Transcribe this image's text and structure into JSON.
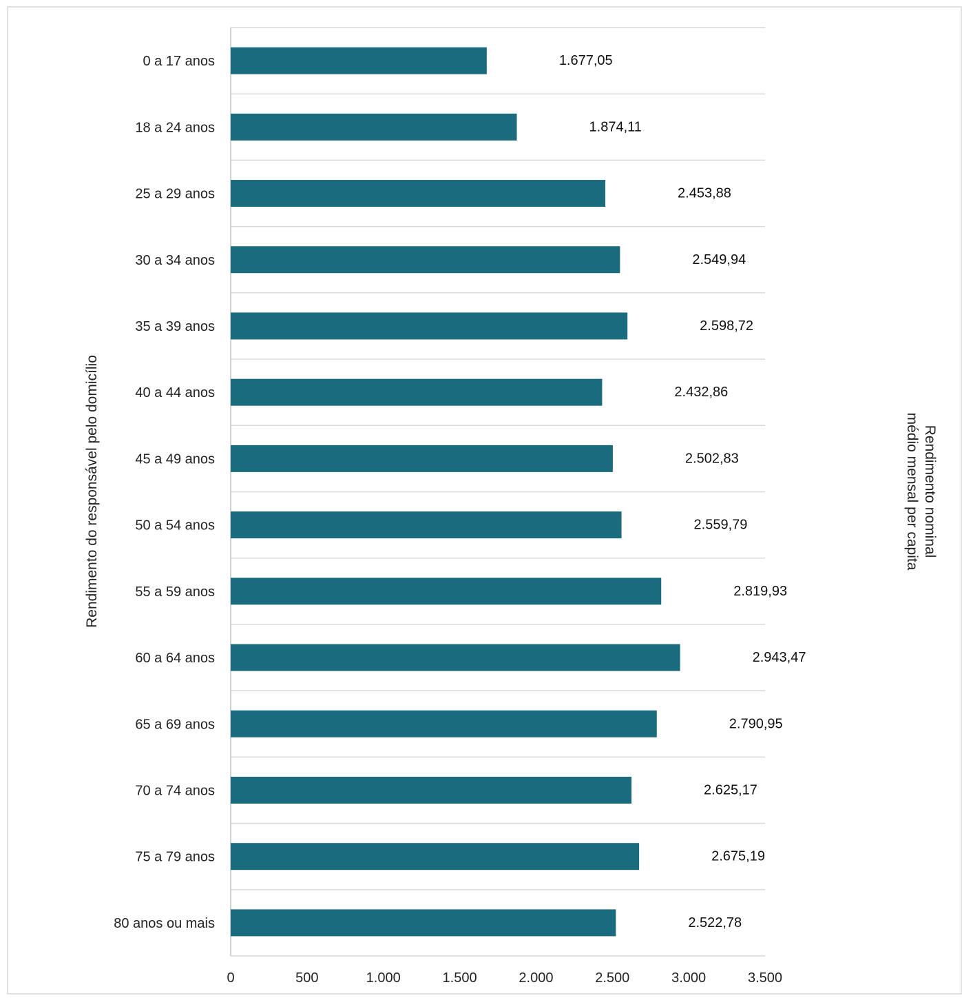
{
  "chart_data": {
    "type": "bar",
    "orientation": "horizontal",
    "title": "",
    "ylabel": "Rendimento do responsável pelo domicílio",
    "xlabel": [
      "Rendimento nominal",
      "médio mensal per capita"
    ],
    "categories": [
      "0 a 17 anos",
      "18 a 24 anos",
      "25 a 29 anos",
      "30 a 34 anos",
      "35 a 39 anos",
      "40 a 44 anos",
      "45 a 49 anos",
      "50 a 54 anos",
      "55 a 59 anos",
      "60 a 64 anos",
      "65 a 69 anos",
      "70 a 74 anos",
      "75 a 79 anos",
      "80 anos ou mais"
    ],
    "values": [
      1677.05,
      1874.11,
      2453.88,
      2549.94,
      2598.72,
      2432.86,
      2502.83,
      2559.79,
      2819.93,
      2943.47,
      2790.95,
      2625.17,
      2675.19,
      2522.78
    ],
    "value_labels": [
      "1.677,05",
      "1.874,11",
      "2.453,88",
      "2.549,94",
      "2.598,72",
      "2.432,86",
      "2.502,83",
      "2.559,79",
      "2.819,93",
      "2.943,47",
      "2.790,95",
      "2.625,17",
      "2.675,19",
      "2.522,78"
    ],
    "xlim": [
      0,
      3500
    ],
    "x_ticks": [
      0,
      500,
      1000,
      1500,
      2000,
      2500,
      3000,
      3500
    ],
    "x_tick_labels": [
      "0",
      "500",
      "1.000",
      "1.500",
      "2.000",
      "2.500",
      "3.000",
      "3.500"
    ],
    "grid": "horizontal separators",
    "legend": "none",
    "bar_color": "#1b6b7e"
  }
}
